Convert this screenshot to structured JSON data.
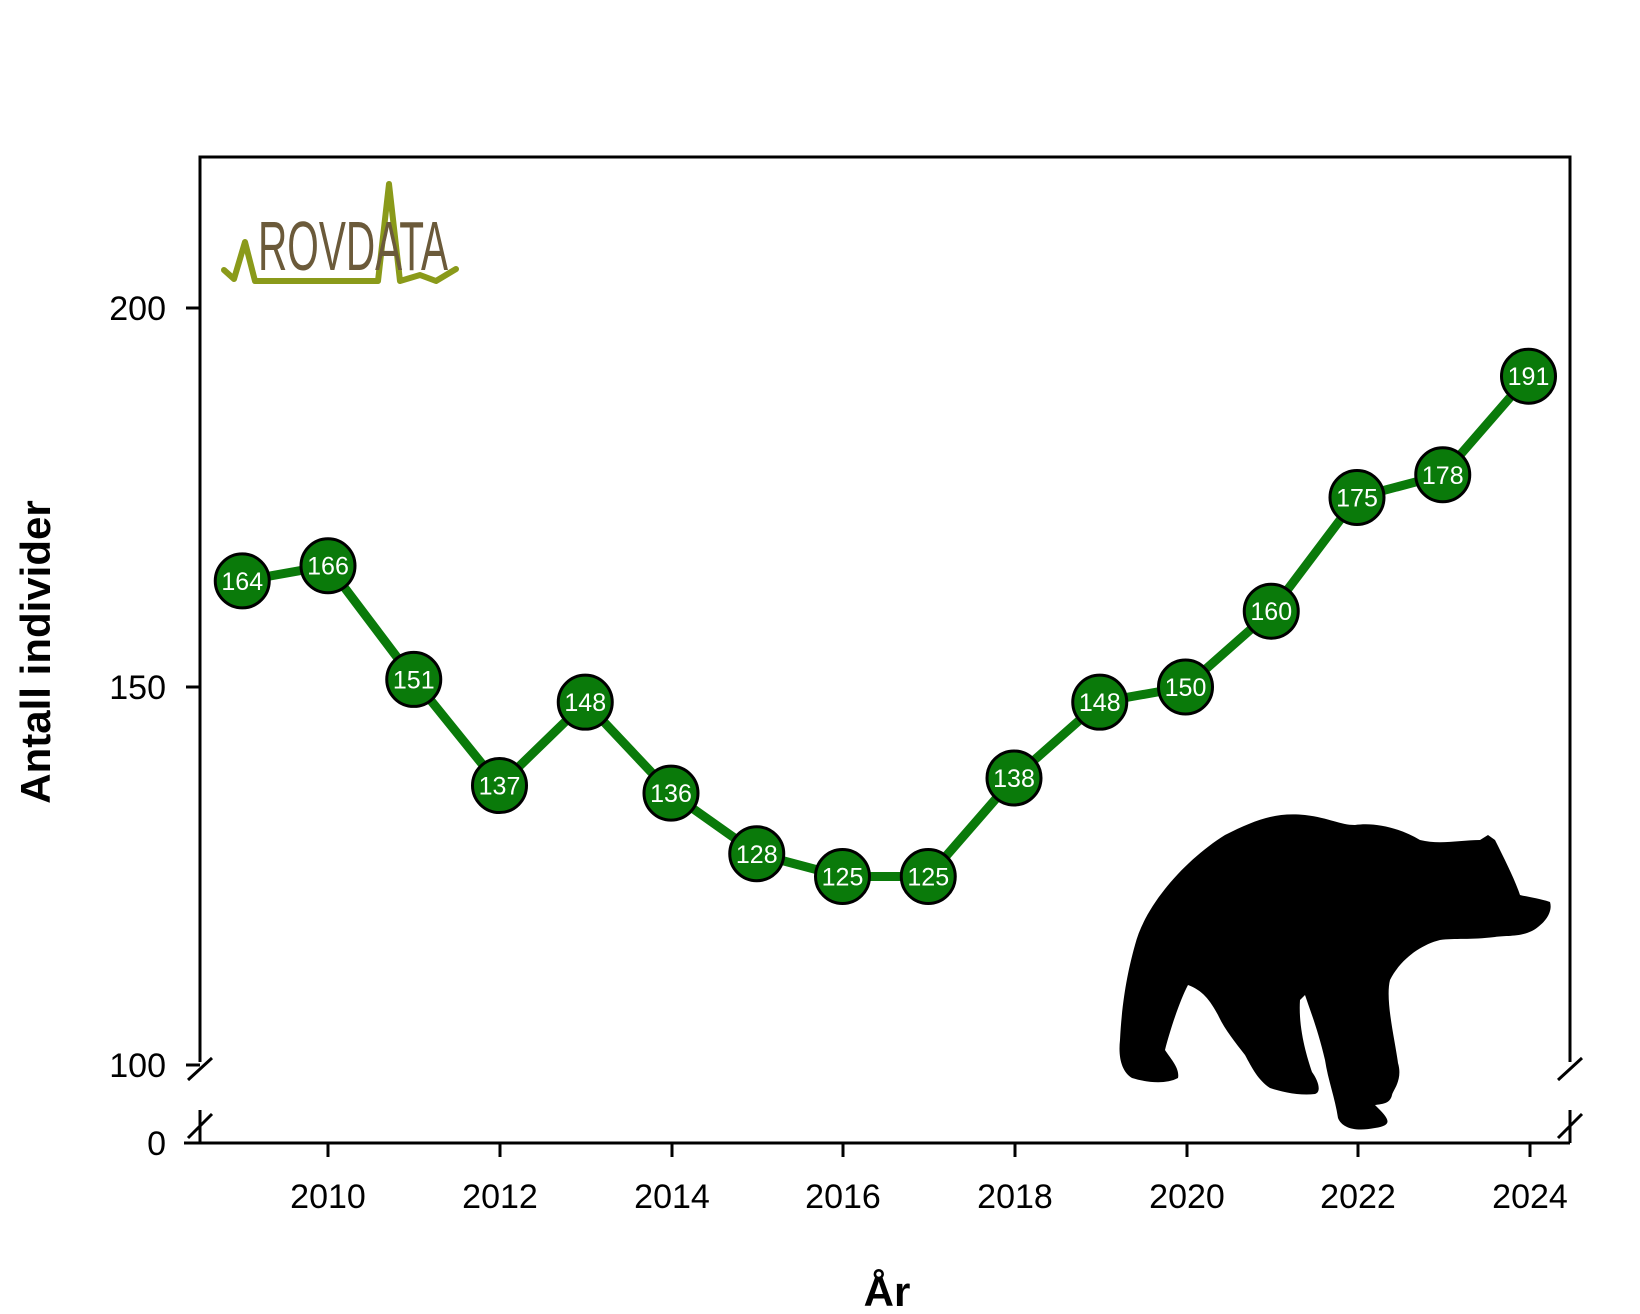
{
  "chart_data": {
    "type": "line",
    "title": "",
    "xlabel": "År",
    "ylabel": "Antall individer",
    "x": [
      2009,
      2010,
      2011,
      2012,
      2013,
      2014,
      2015,
      2016,
      2017,
      2018,
      2019,
      2020,
      2021,
      2022,
      2023,
      2024
    ],
    "values": [
      164,
      166,
      151,
      137,
      148,
      136,
      128,
      125,
      125,
      138,
      148,
      150,
      160,
      175,
      178,
      191
    ],
    "data_labels": [
      "164",
      "166",
      "151",
      "137",
      "148",
      "136",
      "128",
      "125",
      "125",
      "138",
      "148",
      "150",
      "160",
      "175",
      "178",
      "191"
    ],
    "x_ticks": [
      "2010",
      "2012",
      "2014",
      "2016",
      "2018",
      "2020",
      "2022",
      "2024"
    ],
    "y_ticks": [
      "0",
      "100",
      "150",
      "200"
    ],
    "xlim": [
      2008.5,
      2024.5
    ],
    "ylim": [
      100,
      220
    ],
    "y_axis_break": "between 0 and 100",
    "grid": false,
    "colors": {
      "line": "#0a7a0a",
      "marker_fill": "#0a7a0a",
      "marker_edge": "#000000",
      "label_text": "#ffffff"
    }
  },
  "logo": {
    "text": "ROVDATA",
    "colors": {
      "text": "#6b5a3a",
      "line": "#8a9a1a"
    }
  },
  "silhouette": {
    "icon": "bear-silhouette-icon",
    "color": "#000000"
  }
}
